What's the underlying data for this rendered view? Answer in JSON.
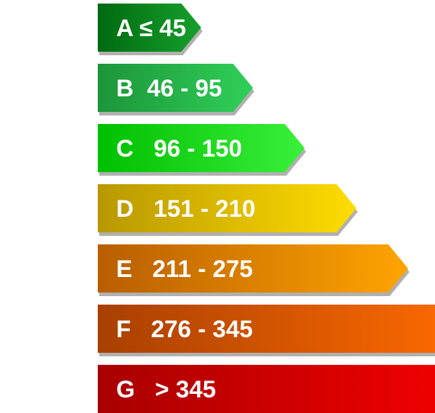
{
  "classes": [
    {
      "letter": "A",
      "range": "≤ 45",
      "color_dark": "#006a10",
      "color_light": "#16a02c"
    },
    {
      "letter": "B",
      "range": " 46 - 95",
      "color_dark": "#1c953a",
      "color_light": "#30d058"
    },
    {
      "letter": "C",
      "range": "  96 - 150",
      "color_dark": "#00bf00",
      "color_light": "#3af03a"
    },
    {
      "letter": "D",
      "range": "  151 - 210",
      "color_dark": "#b89800",
      "color_light": "#ffdc00"
    },
    {
      "letter": "E",
      "range": "  211 - 275",
      "color_dark": "#b85e00",
      "color_light": "#ffa400"
    },
    {
      "letter": "F",
      "range": "  276 - 345",
      "color_dark": "#a84000",
      "color_light": "#ff6a00"
    },
    {
      "letter": "G",
      "range": "  > 345",
      "color_dark": "#a80000",
      "color_light": "#ff0000"
    }
  ]
}
